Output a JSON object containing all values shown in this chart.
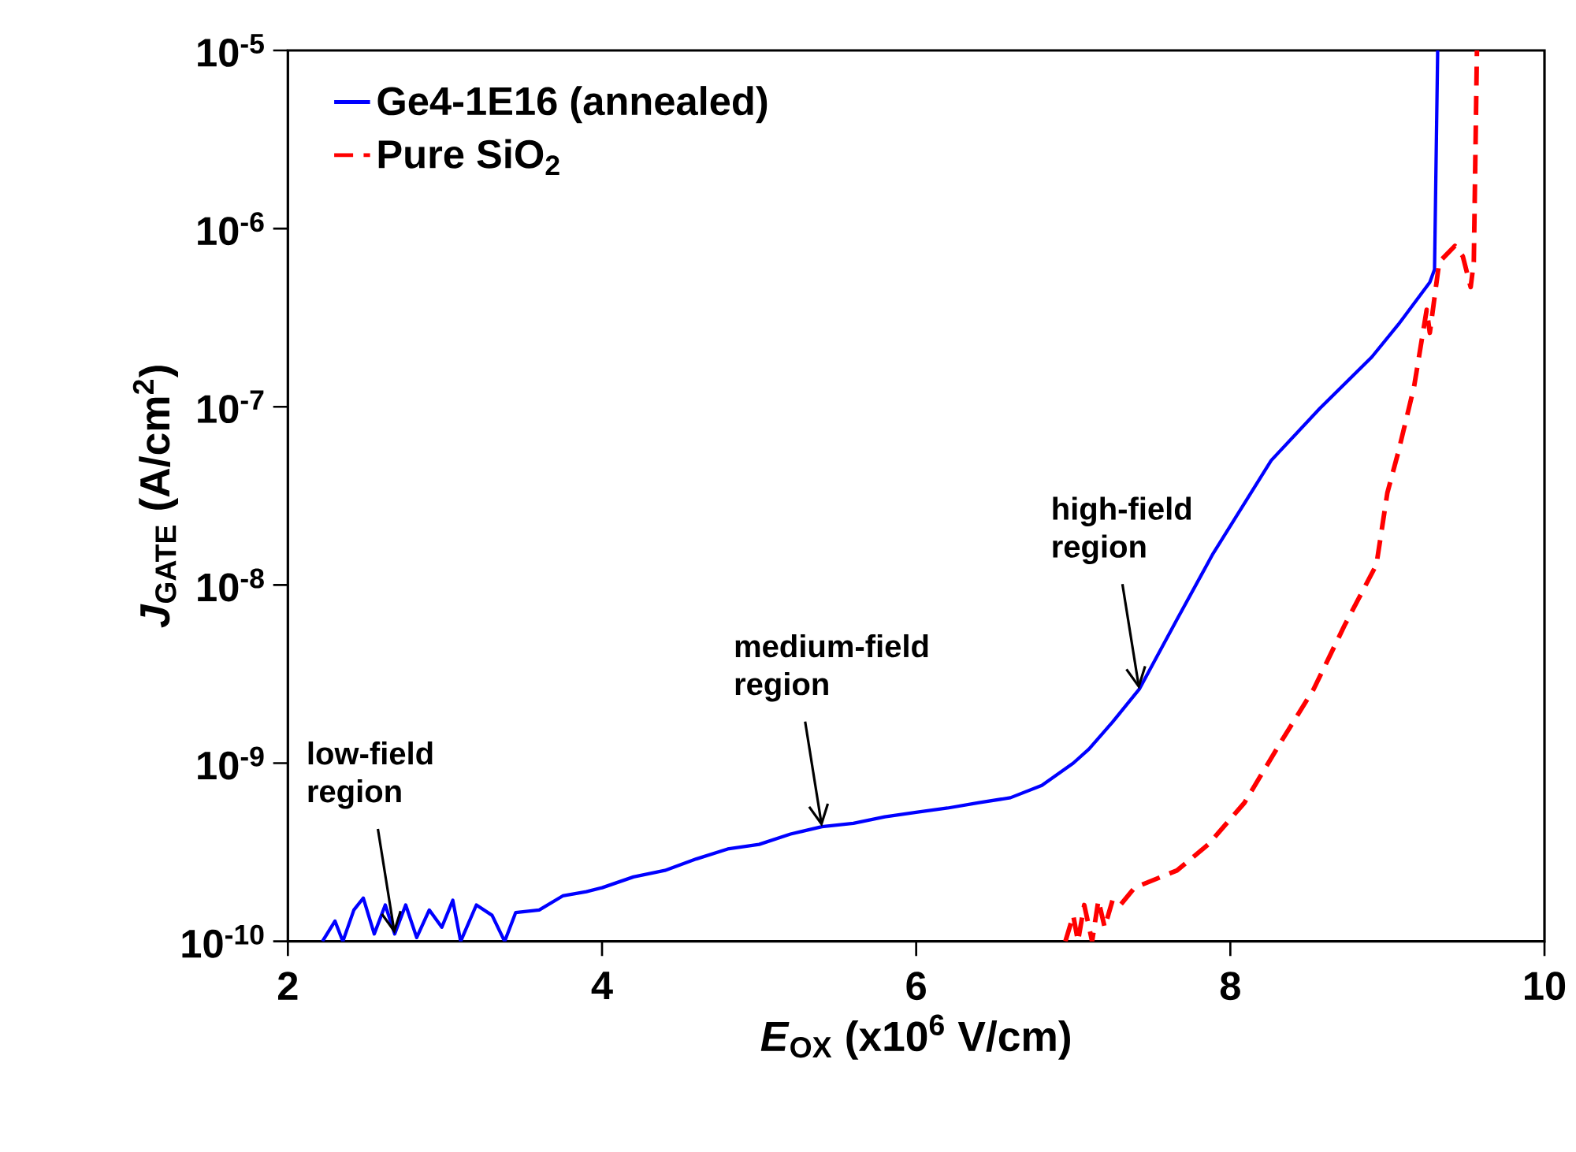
{
  "chart_data": {
    "type": "line",
    "xlabel": "*E*$_{OX}$ (x10$^{6}$ V/cm)",
    "ylabel": "*J*$_{GATE}$ (A/cm$^{2}$)",
    "xlim": [
      2,
      10
    ],
    "xticks": [
      2,
      4,
      6,
      8,
      10
    ],
    "ylim": [
      1e-10,
      1e-05
    ],
    "yticks": [
      {
        "value": 1e-10,
        "label": "10$^{-10}$"
      },
      {
        "value": 1e-09,
        "label": "10$^{-9}$"
      },
      {
        "value": 1e-08,
        "label": "10$^{-8}$"
      },
      {
        "value": 1e-07,
        "label": "10$^{-7}$"
      },
      {
        "value": 1e-06,
        "label": "10$^{-6}$"
      },
      {
        "value": 1e-05,
        "label": "10$^{-5}$"
      }
    ],
    "log": "y",
    "legend": "top left",
    "marker": "none",
    "series": [
      {
        "name": "Ge4-1E16 (annealed)",
        "color": "#0000ff",
        "line_style": "solid",
        "x": [
          2.22,
          2.3,
          2.35,
          2.42,
          2.48,
          2.55,
          2.62,
          2.68,
          2.75,
          2.82,
          2.9,
          2.98,
          3.05,
          3.1,
          3.2,
          3.3,
          3.38,
          3.45,
          3.6,
          3.75,
          3.9,
          4.0,
          4.2,
          4.4,
          4.6,
          4.8,
          5.0,
          5.2,
          5.4,
          5.6,
          5.8,
          6.0,
          6.2,
          6.4,
          6.6,
          6.8,
          7.0,
          7.1,
          7.25,
          7.42,
          7.66,
          7.89,
          8.26,
          8.57,
          8.9,
          9.07,
          9.27,
          9.3,
          9.32
        ],
        "values": [
          1e-10,
          1.3e-10,
          1e-10,
          1.5e-10,
          1.75e-10,
          1.1e-10,
          1.6e-10,
          1.1e-10,
          1.6e-10,
          1.05e-10,
          1.5e-10,
          1.2e-10,
          1.7e-10,
          1e-10,
          1.6e-10,
          1.4e-10,
          1e-10,
          1.45e-10,
          1.5e-10,
          1.8e-10,
          1.9e-10,
          2e-10,
          2.3e-10,
          2.5e-10,
          2.9e-10,
          3.3e-10,
          3.5e-10,
          4e-10,
          4.4e-10,
          4.6e-10,
          5e-10,
          5.3e-10,
          5.6e-10,
          6e-10,
          6.4e-10,
          7.5e-10,
          1e-09,
          1.2e-09,
          1.7e-09,
          2.6e-09,
          6.4e-09,
          1.5e-08,
          5e-08,
          9.8e-08,
          1.9e-07,
          2.9e-07,
          5e-07,
          5.9e-07,
          1e-05
        ]
      },
      {
        "name": "Pure SiO$_{2}$",
        "color": "#ff0000",
        "line_style": "dashed",
        "x": [
          6.95,
          7.0,
          7.03,
          7.07,
          7.12,
          7.16,
          7.2,
          7.25,
          7.3,
          7.39,
          7.66,
          7.86,
          8.09,
          8.33,
          8.53,
          8.73,
          8.93,
          9.0,
          9.07,
          9.17,
          9.25,
          9.27,
          9.33,
          9.43,
          9.48,
          9.53,
          9.55,
          9.57
        ],
        "values": [
          1e-10,
          1.4e-10,
          1e-10,
          1.6e-10,
          1e-10,
          1.7e-10,
          1.2e-10,
          1.7e-10,
          1.6e-10,
          2e-10,
          2.5e-10,
          3.5e-10,
          6e-10,
          1.35e-09,
          2.6e-09,
          6e-09,
          1.3e-08,
          3.3e-08,
          5.6e-08,
          1.3e-07,
          3.5e-07,
          2.6e-07,
          6.5e-07,
          8e-07,
          7e-07,
          4.7e-07,
          6.5e-07,
          1e-05
        ]
      }
    ],
    "annotations": [
      {
        "text": "low-field region",
        "x": 2.68,
        "y": 1.1e-10
      },
      {
        "text": "medium-field region",
        "x": 5.4,
        "y": 4.4e-10
      },
      {
        "text": "high-field region",
        "x": 7.42,
        "y": 2.6e-09
      }
    ]
  }
}
